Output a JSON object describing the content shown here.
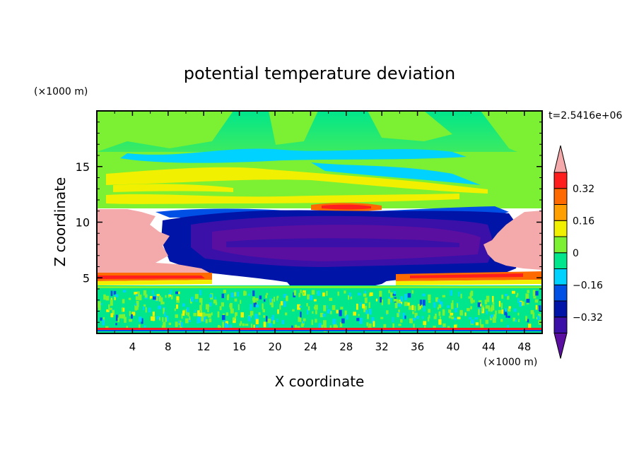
{
  "chart_data": {
    "type": "heatmap",
    "title": "potential temperature deviation",
    "xlabel": "X coordinate",
    "ylabel": "Z coordinate",
    "x_unit": "(×1000 m)",
    "y_unit": "(×1000 m)",
    "time_label": "t=2.5416e+06",
    "xlim": [
      0,
      50
    ],
    "ylim": [
      0,
      20
    ],
    "x_ticks": [
      4,
      8,
      12,
      16,
      20,
      24,
      28,
      32,
      36,
      40,
      44,
      48
    ],
    "y_ticks": [
      5,
      10,
      15
    ],
    "colorbar": {
      "levels": [
        -0.48,
        -0.4,
        -0.32,
        -0.24,
        -0.16,
        -0.08,
        0,
        0.08,
        0.16,
        0.24,
        0.32,
        0.4
      ],
      "colors": [
        "#5a0fa0",
        "#3b10a8",
        "#0014a8",
        "#0050e6",
        "#00d2ff",
        "#00e68c",
        "#7cf032",
        "#f0f000",
        "#ffa000",
        "#ff6a00",
        "#ff1e1e",
        "#f4aaaa"
      ],
      "tick_labels": [
        "0.32",
        "0.16",
        "0",
        "−0.16",
        "−0.32"
      ],
      "tick_values": [
        0.32,
        0.16,
        0,
        -0.16,
        -0.32
      ]
    },
    "regions": [
      {
        "name": "stratosphere-background",
        "value": 0.02
      },
      {
        "name": "upper-cyan-bands",
        "value": -0.1
      },
      {
        "name": "yellow-bands-z14",
        "value": 0.18
      },
      {
        "name": "orange-band-z11.5",
        "value": 0.28
      },
      {
        "name": "cold-core-z6-z11",
        "value": -0.4
      },
      {
        "name": "warm-left-pocket",
        "value": 0.45
      },
      {
        "name": "warm-right-pocket",
        "value": 0.45
      },
      {
        "name": "red-band-z5",
        "value": 0.33
      },
      {
        "name": "boundary-layer-noise",
        "value": 0.0
      }
    ]
  },
  "colors": {
    "frame": "#000000",
    "background": "#ffffff"
  }
}
